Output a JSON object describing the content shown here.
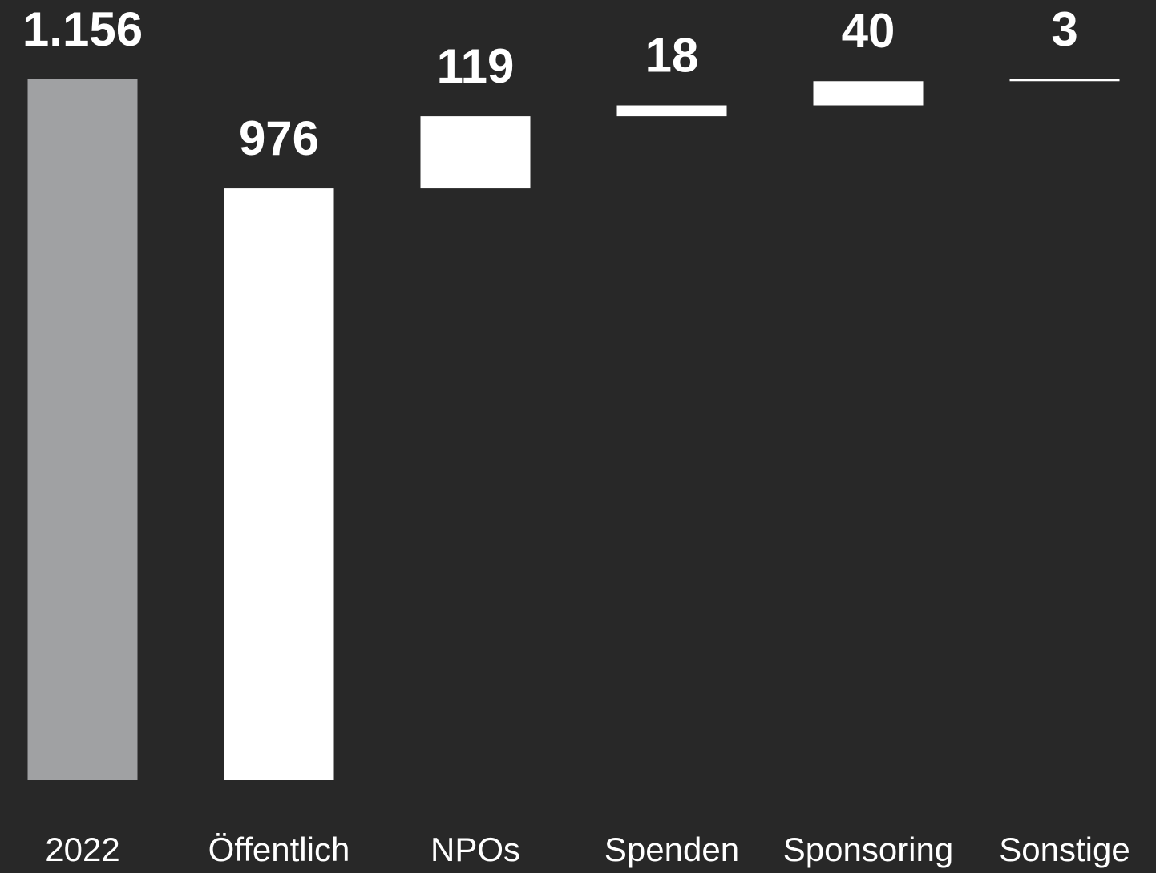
{
  "chart_data": {
    "type": "waterfall",
    "categories": [
      "2022",
      "Öffentlich",
      "NPOs",
      "Spenden",
      "Sponsoring",
      "Sonstige"
    ],
    "values": [
      1156,
      976,
      119,
      18,
      40,
      3
    ],
    "value_labels": [
      "1.156",
      "976",
      "119",
      "18",
      "40",
      "3"
    ],
    "colors": [
      "#a0a1a3",
      "#ffffff",
      "#ffffff",
      "#ffffff",
      "#ffffff",
      "#ffffff"
    ]
  }
}
